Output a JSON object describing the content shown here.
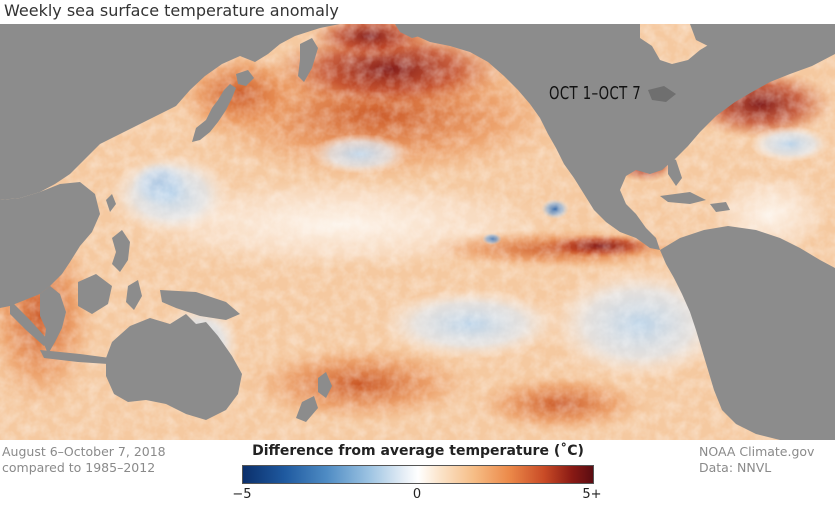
{
  "title": "Weekly sea surface temperature anomaly",
  "date_label": "OCT 1–OCT 7",
  "footer_left": {
    "line1": "August 6–October 7, 2018",
    "line2": "compared to 1985–2012"
  },
  "footer_right": {
    "line1": "NOAA Climate.gov",
    "line2": "Data: NNVL"
  },
  "legend": {
    "title": "Difference from average temperature (˚C)",
    "ticks": [
      "−5",
      "0",
      "5+"
    ],
    "tick_values": [
      -5,
      0,
      5
    ],
    "range": [
      -5,
      5
    ],
    "colors": [
      "#0b2f6b",
      "#4f8cc4",
      "#ffffff",
      "#ec8a4a",
      "#5a0c12"
    ]
  },
  "map_colors": {
    "land": "#8c8c8c",
    "ocean_base": "#f7d2ae"
  }
}
